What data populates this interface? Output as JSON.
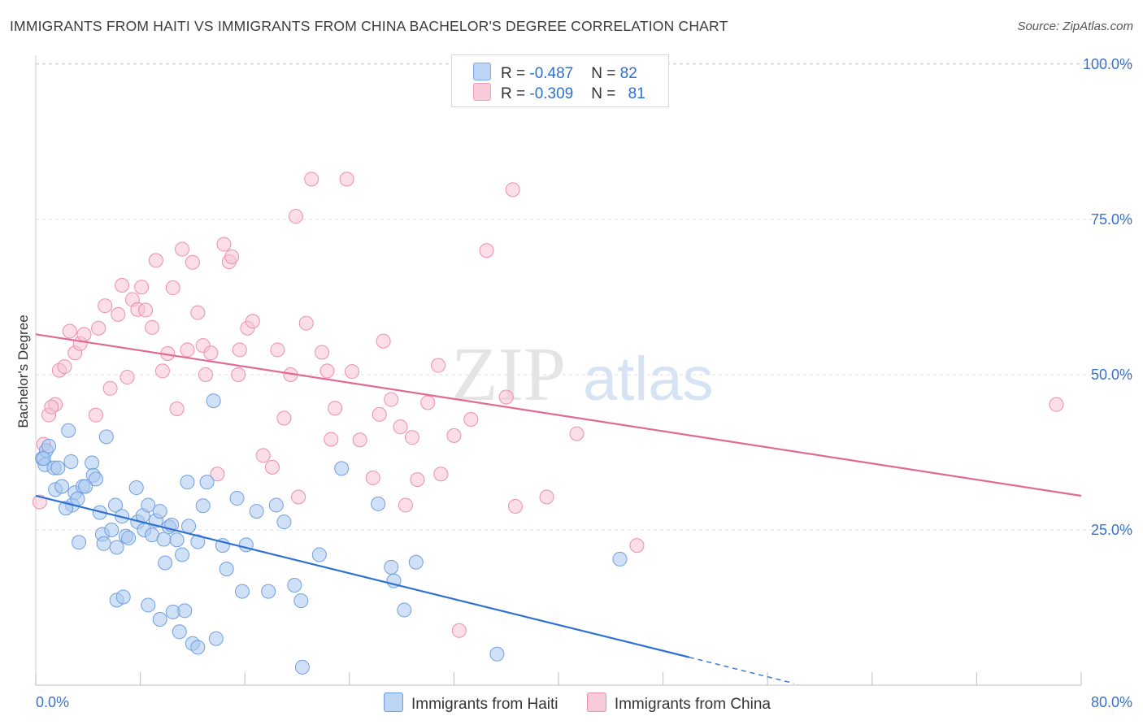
{
  "header": {
    "title": "IMMIGRANTS FROM HAITI VS IMMIGRANTS FROM CHINA BACHELOR'S DEGREE CORRELATION CHART",
    "source": "Source: ZipAtlas.com"
  },
  "watermark": {
    "zip": "ZIP",
    "atlas": "atlas"
  },
  "legend_stats": [
    {
      "r_label": "R = ",
      "r_value": "-0.487",
      "n_label": "N = ",
      "n_value": "82",
      "color": "#7aaae8"
    },
    {
      "r_label": "R = ",
      "r_value": "-0.309",
      "n_label": "N = ",
      "n_value": "81",
      "color": "#f1a0b8"
    }
  ],
  "colors": {
    "haiti_fill": "#aac9f0",
    "haiti_stroke": "#6f9fdf",
    "haiti_line": "#2d72d2",
    "china_fill": "#f7c3d3",
    "china_stroke": "#eb8fac",
    "china_line": "#e06a95",
    "axis_text": "#3a72c4",
    "grid": "#dcdcdc"
  },
  "chart_data": {
    "type": "scatter",
    "title": "IMMIGRANTS FROM HAITI VS IMMIGRANTS FROM CHINA BACHELOR'S DEGREE CORRELATION CHART",
    "xlabel": "",
    "ylabel": "Bachelor's Degree",
    "xlim": [
      0,
      80
    ],
    "ylim": [
      0,
      105
    ],
    "x_tick_labels": [
      "0.0%",
      "80.0%"
    ],
    "y_tick_labels": [
      "25.0%",
      "50.0%",
      "75.0%",
      "100.0%"
    ],
    "y_ticks": [
      25,
      50,
      75,
      100
    ],
    "grid": true,
    "legend": "bottom",
    "series": [
      {
        "name": "Immigrants from Haiti",
        "color": "#6f9fdf",
        "points": [
          [
            0.5,
            36.5
          ],
          [
            0.8,
            37.8
          ],
          [
            1.0,
            38.5
          ],
          [
            0.7,
            35.5
          ],
          [
            1.4,
            35
          ],
          [
            1.7,
            35
          ],
          [
            2.5,
            41
          ],
          [
            1.5,
            31.5
          ],
          [
            2.0,
            32
          ],
          [
            2.7,
            36
          ],
          [
            2.8,
            29
          ],
          [
            3.0,
            31
          ],
          [
            2.3,
            28.5
          ],
          [
            3.2,
            30
          ],
          [
            3.6,
            32
          ],
          [
            3.8,
            32
          ],
          [
            4.3,
            35.8
          ],
          [
            4.4,
            33.8
          ],
          [
            4.6,
            33.2
          ],
          [
            5.4,
            40
          ],
          [
            3.3,
            23
          ],
          [
            4.9,
            27.8
          ],
          [
            5.1,
            24.3
          ],
          [
            5.2,
            22.8
          ],
          [
            5.8,
            25
          ],
          [
            6.1,
            29
          ],
          [
            6.2,
            22.2
          ],
          [
            6.6,
            27.2
          ],
          [
            6.9,
            24
          ],
          [
            7.1,
            23.7
          ],
          [
            7.7,
            31.8
          ],
          [
            7.8,
            26.3
          ],
          [
            8.2,
            27.3
          ],
          [
            8.3,
            25
          ],
          [
            8.6,
            29
          ],
          [
            8.9,
            24.2
          ],
          [
            9.2,
            26.5
          ],
          [
            9.5,
            28
          ],
          [
            9.8,
            23.5
          ],
          [
            9.9,
            19.7
          ],
          [
            10.2,
            25.5
          ],
          [
            10.4,
            25.8
          ],
          [
            10.8,
            23.4
          ],
          [
            11.2,
            21
          ],
          [
            11.6,
            32.7
          ],
          [
            11.7,
            25.6
          ],
          [
            12.4,
            23.1
          ],
          [
            12.8,
            28.9
          ],
          [
            13.1,
            32.7
          ],
          [
            13.6,
            45.8
          ],
          [
            14.3,
            22.5
          ],
          [
            14.6,
            18.7
          ],
          [
            15.4,
            30.1
          ],
          [
            15.8,
            15.1
          ],
          [
            16.1,
            22.6
          ],
          [
            16.9,
            28
          ],
          [
            17.8,
            15.1
          ],
          [
            18.4,
            29
          ],
          [
            19.0,
            26.3
          ],
          [
            19.8,
            16.1
          ],
          [
            20.3,
            13.6
          ],
          [
            21.7,
            21
          ],
          [
            23.4,
            34.9
          ],
          [
            26.2,
            29.2
          ],
          [
            27.2,
            19
          ],
          [
            27.4,
            16.8
          ],
          [
            28.2,
            12.1
          ],
          [
            29.1,
            19.8
          ],
          [
            35.3,
            5
          ],
          [
            44.7,
            20.3
          ],
          [
            6.2,
            13.7
          ],
          [
            6.7,
            14.2
          ],
          [
            8.6,
            12.9
          ],
          [
            9.5,
            10.6
          ],
          [
            10.5,
            11.8
          ],
          [
            11.4,
            12
          ],
          [
            11.0,
            8.6
          ],
          [
            12.0,
            6.7
          ],
          [
            12.4,
            6.1
          ],
          [
            13.8,
            7.5
          ],
          [
            20.4,
            2.9
          ],
          [
            0.6,
            36.5
          ]
        ]
      },
      {
        "name": "Immigrants from China",
        "color": "#eb8fac",
        "points": [
          [
            0.3,
            29.5
          ],
          [
            0.6,
            38.8
          ],
          [
            1.0,
            43.5
          ],
          [
            1.5,
            45.2
          ],
          [
            1.8,
            50.7
          ],
          [
            2.2,
            51.3
          ],
          [
            2.6,
            57
          ],
          [
            3.0,
            53.5
          ],
          [
            3.4,
            55
          ],
          [
            3.7,
            56.5
          ],
          [
            4.8,
            57.5
          ],
          [
            4.6,
            43.5
          ],
          [
            5.7,
            47.8
          ],
          [
            6.3,
            59.7
          ],
          [
            5.3,
            61.1
          ],
          [
            6.6,
            64.4
          ],
          [
            7.0,
            49.6
          ],
          [
            7.4,
            62.1
          ],
          [
            7.8,
            60.5
          ],
          [
            8.1,
            64.1
          ],
          [
            8.4,
            60.4
          ],
          [
            8.9,
            57.6
          ],
          [
            9.2,
            68.4
          ],
          [
            9.7,
            50.6
          ],
          [
            10.1,
            53.4
          ],
          [
            10.5,
            64
          ],
          [
            10.8,
            44.5
          ],
          [
            11.2,
            70.2
          ],
          [
            11.6,
            54
          ],
          [
            12.0,
            68.1
          ],
          [
            12.4,
            60
          ],
          [
            12.8,
            54.7
          ],
          [
            13.0,
            50
          ],
          [
            13.4,
            53.5
          ],
          [
            13.9,
            34
          ],
          [
            14.4,
            71
          ],
          [
            14.8,
            68.2
          ],
          [
            15.0,
            69
          ],
          [
            15.5,
            50
          ],
          [
            15.6,
            54
          ],
          [
            16.2,
            57.5
          ],
          [
            16.6,
            58.6
          ],
          [
            17.4,
            37
          ],
          [
            18.1,
            35.1
          ],
          [
            18.5,
            54
          ],
          [
            19.0,
            43
          ],
          [
            19.5,
            50
          ],
          [
            19.9,
            75.5
          ],
          [
            20.1,
            30.3
          ],
          [
            20.7,
            58.3
          ],
          [
            21.1,
            81.5
          ],
          [
            21.9,
            53.6
          ],
          [
            22.3,
            50.6
          ],
          [
            22.6,
            39.6
          ],
          [
            22.9,
            44.6
          ],
          [
            23.8,
            81.5
          ],
          [
            24.2,
            50.5
          ],
          [
            24.8,
            39.5
          ],
          [
            25.8,
            33.4
          ],
          [
            26.3,
            43.6
          ],
          [
            26.6,
            55.4
          ],
          [
            27.2,
            46
          ],
          [
            27.9,
            41.6
          ],
          [
            28.3,
            29
          ],
          [
            28.8,
            39.9
          ],
          [
            29.2,
            33.1
          ],
          [
            30.0,
            45.5
          ],
          [
            30.8,
            51.5
          ],
          [
            31.0,
            34
          ],
          [
            32.0,
            40.2
          ],
          [
            32.4,
            8.8
          ],
          [
            33.3,
            42.8
          ],
          [
            34.5,
            70
          ],
          [
            36.0,
            46.4
          ],
          [
            36.5,
            79.8
          ],
          [
            36.7,
            28.8
          ],
          [
            39.1,
            30.3
          ],
          [
            41.4,
            40.5
          ],
          [
            46.0,
            22.5
          ],
          [
            78.1,
            45.2
          ],
          [
            1.2,
            44.8
          ]
        ]
      }
    ],
    "trend_lines": [
      {
        "series": "Immigrants from Haiti",
        "x": [
          0,
          50
        ],
        "y": [
          30.5,
          4.5
        ],
        "dashed_x": [
          50,
          58
        ],
        "dashed_y": [
          4.5,
          0.3
        ]
      },
      {
        "series": "Immigrants from China",
        "x": [
          0,
          80
        ],
        "y": [
          56.5,
          30.5
        ]
      }
    ]
  },
  "bottom_legend": [
    {
      "label": "Immigrants from Haiti",
      "color": "#aac9f0",
      "border": "#6f9fdf"
    },
    {
      "label": "Immigrants from China",
      "color": "#f7c3d3",
      "border": "#eb8fac"
    }
  ]
}
